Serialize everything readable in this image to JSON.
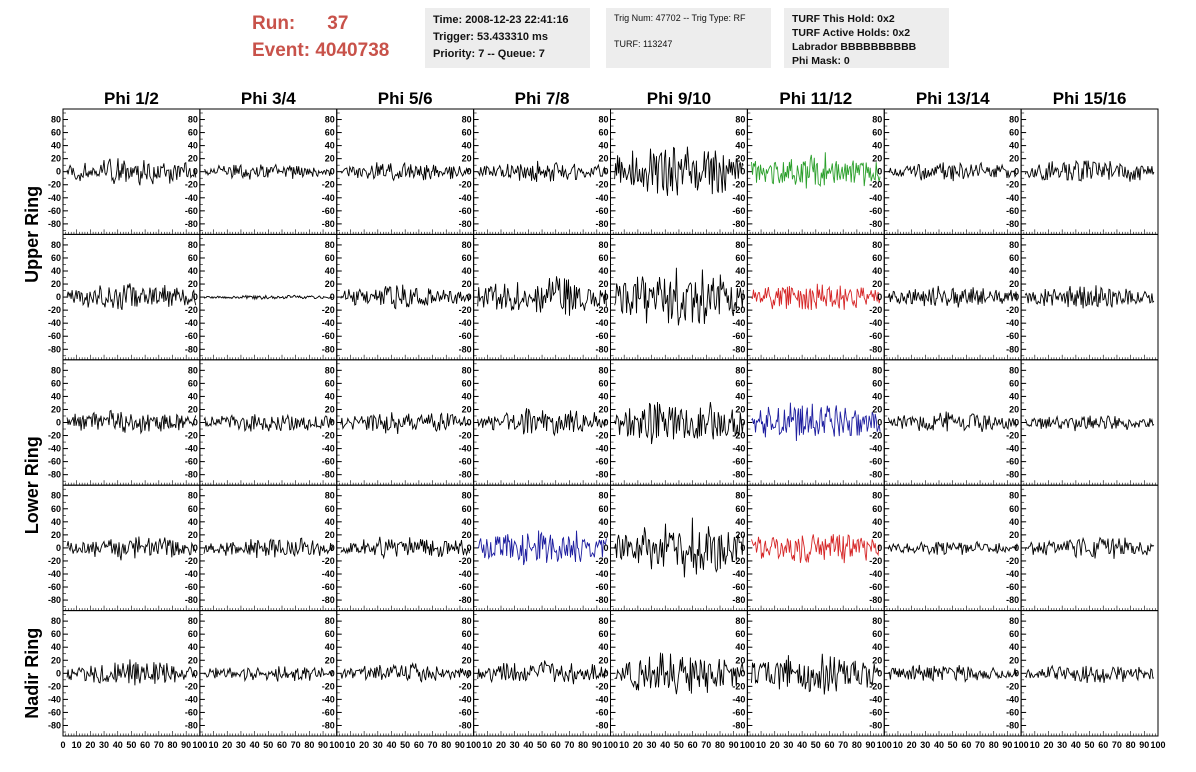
{
  "header": {
    "run_label": "Run:",
    "run_value": "37",
    "event_label": "Event:",
    "event_value": "4040738",
    "info1": [
      "Time: 2008-12-23 22:41:16",
      "Trigger: 53.433310 ms",
      "Priority: 7 -- Queue: 7"
    ],
    "info2": [
      "Trig Num: 47702 -- Trig Type: RF",
      "",
      "TURF: 113247"
    ],
    "info3": [
      "TURF This Hold: 0x2",
      "TURF Active Holds: 0x2",
      "Labrador BBBBBBBBBB",
      "Phi Mask: 0"
    ]
  },
  "chart_data": {
    "type": "line",
    "columns": [
      "Phi 1/2",
      "Phi 3/4",
      "Phi 5/6",
      "Phi 7/8",
      "Phi 9/10",
      "Phi 11/12",
      "Phi 13/14",
      "Phi 15/16"
    ],
    "ring_labels": [
      "Upper Ring",
      "Lower Ring",
      "Nadir Ring"
    ],
    "row_groups": [
      {
        "label": "Upper Ring",
        "rows": [
          0,
          1
        ]
      },
      {
        "label": "Lower Ring",
        "rows": [
          2,
          3
        ]
      },
      {
        "label": "Nadir Ring",
        "rows": [
          4
        ]
      }
    ],
    "xlim": [
      0,
      100
    ],
    "ylim": [
      -90,
      90
    ],
    "x_ticks": [
      0,
      10,
      20,
      30,
      40,
      50,
      60,
      70,
      80,
      90,
      100
    ],
    "y_ticks": [
      -80,
      -60,
      -40,
      -20,
      0,
      20,
      40,
      60,
      80
    ],
    "amplitudes": [
      [
        22,
        12,
        14,
        15,
        40,
        28,
        14,
        18
      ],
      [
        20,
        3,
        18,
        30,
        45,
        22,
        16,
        18
      ],
      [
        18,
        15,
        16,
        20,
        35,
        30,
        15,
        12
      ],
      [
        18,
        16,
        18,
        28,
        40,
        25,
        10,
        16
      ],
      [
        18,
        12,
        14,
        18,
        30,
        30,
        15,
        14
      ]
    ],
    "colors": [
      [
        "#000000",
        "#000000",
        "#000000",
        "#000000",
        "#000000",
        "#2ca02c",
        "#000000",
        "#000000"
      ],
      [
        "#000000",
        "#000000",
        "#000000",
        "#000000",
        "#000000",
        "#d62728",
        "#000000",
        "#000000"
      ],
      [
        "#000000",
        "#000000",
        "#000000",
        "#000000",
        "#000000",
        "#1f1fa0",
        "#000000",
        "#000000"
      ],
      [
        "#000000",
        "#000000",
        "#000000",
        "#1f1fa0",
        "#000000",
        "#d62728",
        "#000000",
        "#000000"
      ],
      [
        "#000000",
        "#000000",
        "#000000",
        "#000000",
        "#000000",
        "#000000",
        "#000000",
        "#000000"
      ]
    ],
    "samples_per_trace": 130,
    "grid": false
  }
}
